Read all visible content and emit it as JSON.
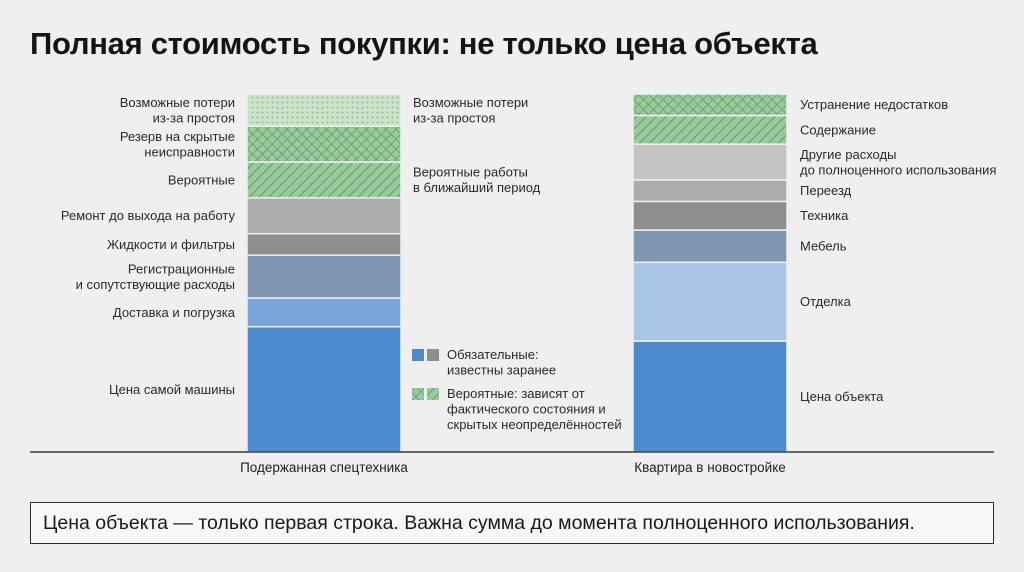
{
  "title": "Полная стоимость покупки: не только цена объекта",
  "note": "Цена объекта — только первая строка. Важна сумма до момента полноценного использования.",
  "colors": {
    "blue": "#4c8ace",
    "blue_light": "#76a6dc",
    "steel": "#7f96b3",
    "pale_blue": "#a9c6e4",
    "gray_dark": "#8e8e8e",
    "gray_mid": "#acacac",
    "gray_light": "#c4c4c4",
    "green": "#9ac99e",
    "green_pale": "#c9e4c9",
    "green_hatch": "#5e9d66"
  },
  "legend": [
    {
      "kind": "solid",
      "label": [
        "Обязательные:",
        "известны заранее"
      ]
    },
    {
      "kind": "hatched",
      "label": [
        "Вероятные: зависят от",
        "фактического состояния и",
        "скрытых неопределённостей"
      ]
    }
  ],
  "chart_data": {
    "type": "bar",
    "stacked": true,
    "ylim": [
      0,
      100
    ],
    "note_values": "Relative segment sizes estimated from bar heights; the original chart has no numeric axis.",
    "bars": [
      {
        "category": "Подержанная спецтехника",
        "segments": [
          {
            "label": [
              "Цена самой машины"
            ],
            "value": 35,
            "kind": "solid",
            "color": "#4c8ace"
          },
          {
            "label": [
              "Доставка и погрузка"
            ],
            "value": 8,
            "kind": "solid",
            "color": "#76a6dc"
          },
          {
            "label": [
              "Регистрационные",
              "и сопутствующие расходы"
            ],
            "value": 12,
            "kind": "solid",
            "color": "#7f96b3"
          },
          {
            "label": [
              "Жидкости и фильтры"
            ],
            "value": 6,
            "kind": "solid",
            "color": "#8e8e8e"
          },
          {
            "label": [
              "Ремонт до выхода на работу"
            ],
            "value": 10,
            "kind": "solid",
            "color": "#acacac"
          },
          {
            "label": [
              "Вероятные"
            ],
            "value": 10,
            "kind": "hatched",
            "color": "#9ac99e"
          },
          {
            "label": [
              "Резерв на скрытые",
              "неисправности"
            ],
            "value": 10,
            "kind": "crosshatched",
            "color": "#9ac99e"
          },
          {
            "label": [
              "Возможные потери",
              "из-за простоя"
            ],
            "value": 9,
            "kind": "dotted",
            "color": "#c9e4c9"
          }
        ],
        "brackets": [
          {
            "label": [
              "Вероятные работы",
              "в ближайший период"
            ],
            "from": 71,
            "to": 81
          },
          {
            "label": [
              "Возможные потери",
              "из-за простоя"
            ],
            "from": 91,
            "to": 100
          }
        ]
      },
      {
        "category": "Квартира в новостройке",
        "segments": [
          {
            "label": [
              "Цена объекта"
            ],
            "value": 31,
            "kind": "solid",
            "color": "#4c8ace"
          },
          {
            "label": [
              "Отделка"
            ],
            "value": 22,
            "kind": "solid",
            "color": "#a9c6e4"
          },
          {
            "label": [
              "Мебель"
            ],
            "value": 9,
            "kind": "solid",
            "color": "#7f96b3"
          },
          {
            "label": [
              "Техника"
            ],
            "value": 8,
            "kind": "solid",
            "color": "#8e8e8e"
          },
          {
            "label": [
              "Переезд"
            ],
            "value": 6,
            "kind": "solid",
            "color": "#acacac"
          },
          {
            "label": [
              "Другие расходы",
              "до полноценного использования"
            ],
            "value": 10,
            "kind": "solid",
            "color": "#c4c4c4"
          },
          {
            "label": [
              "Содержание"
            ],
            "value": 8,
            "kind": "hatched",
            "color": "#9ac99e"
          },
          {
            "label": [
              "Устранение недостатков"
            ],
            "value": 6,
            "kind": "crosshatched",
            "color": "#9ac99e"
          }
        ]
      }
    ]
  }
}
